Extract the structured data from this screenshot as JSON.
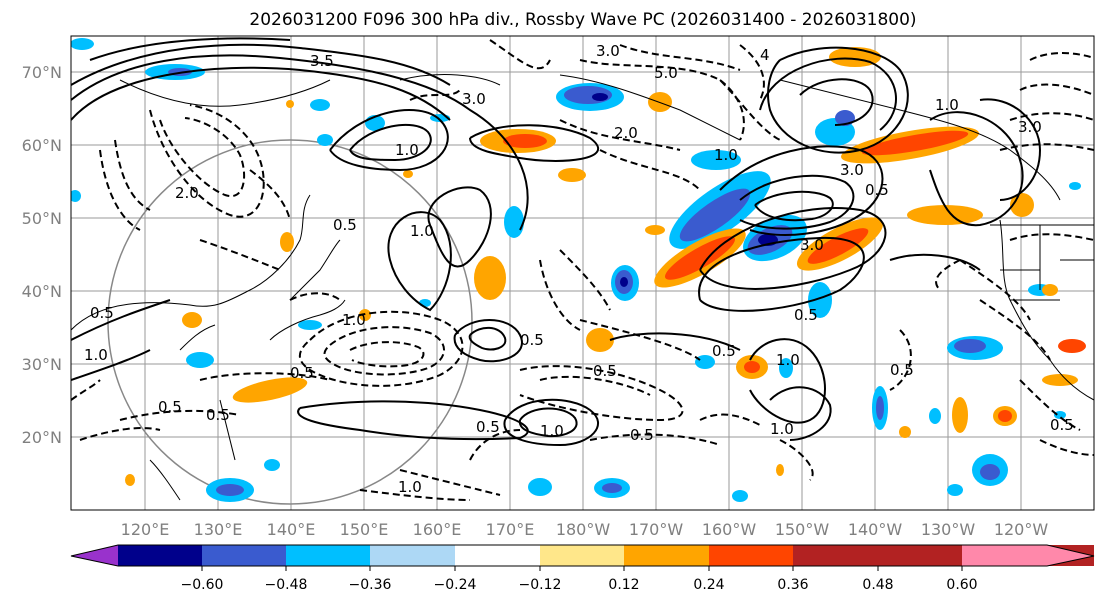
{
  "title": "2026031200 F096 300 hPa div., Rossby Wave PC (2026031400 - 2026031800)",
  "lat_labels": [
    "70°N",
    "60°N",
    "50°N",
    "40°N",
    "30°N",
    "20°N"
  ],
  "lon_labels": [
    "120°E",
    "130°E",
    "140°E",
    "150°E",
    "160°E",
    "170°E",
    "180°W",
    "170°W",
    "160°W",
    "150°W",
    "140°W",
    "130°W",
    "120°W"
  ],
  "colorbar": {
    "tick_labels": [
      "−0.60",
      "−0.48",
      "−0.36",
      "−0.24",
      "−0.12",
      "0.12",
      "0.24",
      "0.36",
      "0.48",
      "0.60"
    ],
    "colors": [
      "#9932cc",
      "#00008b",
      "#3a5bcf",
      "#00bfff",
      "#add8f5",
      "#ffffff",
      "#ffe78a",
      "#ffa500",
      "#ff4500",
      "#b22222",
      "#ff88aa"
    ]
  },
  "contour_labels": [
    "3.0",
    "3.0",
    "5.0",
    "2.0",
    "1.0",
    "3.5",
    "4",
    "1.0",
    "3.0",
    "0.5",
    "1.0",
    "2.0",
    "0.5",
    "0.5",
    "1.0",
    "0.5",
    "0.5",
    "1.0",
    "0.5",
    "0.5",
    "1.0",
    "0.5",
    "0.5",
    "1.0",
    "0.5",
    "1.0",
    "0.5",
    "3.0",
    "0.5",
    "1.0",
    "0.5",
    "3.0",
    "1.0",
    "0.5"
  ]
}
